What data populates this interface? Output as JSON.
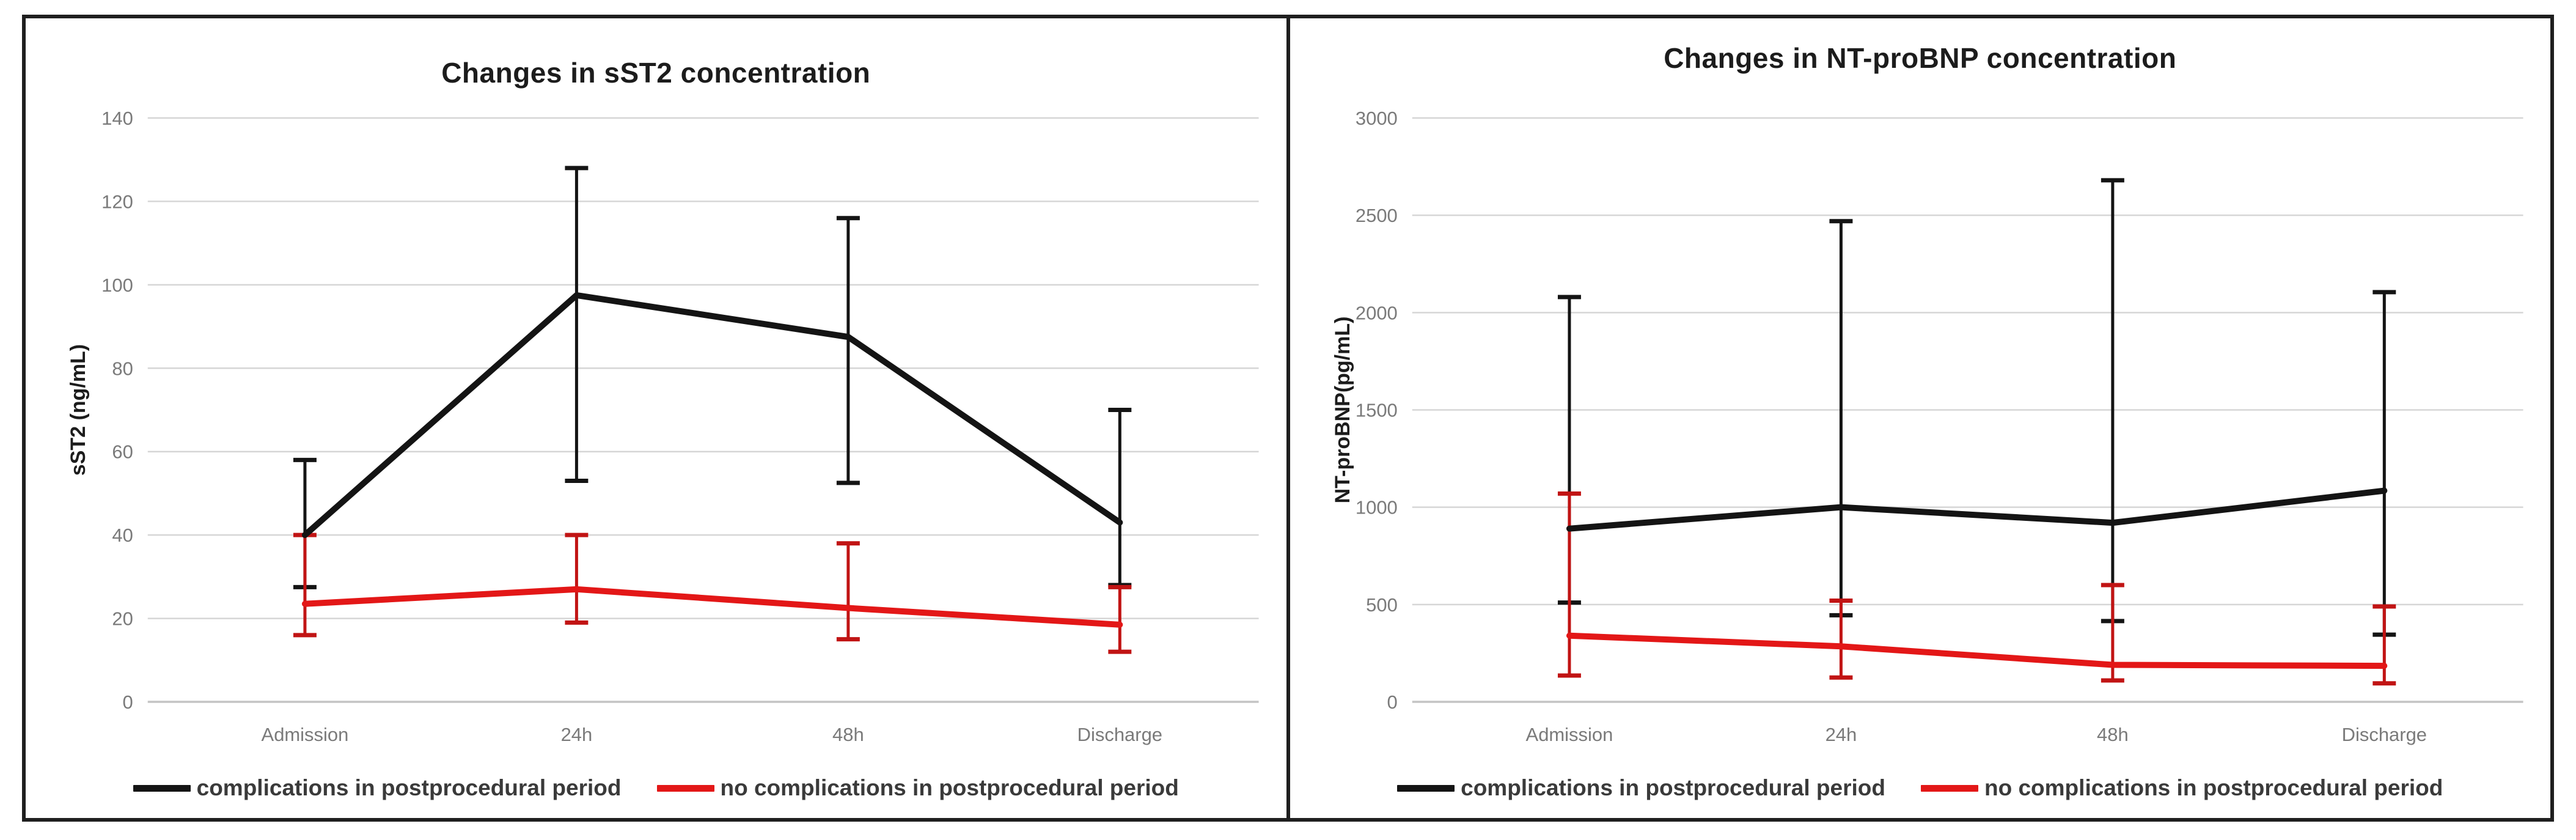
{
  "figure": {
    "background": "#ffffff",
    "frame_color": "#1f1f1f",
    "gridline_color": "#d6d6d6",
    "zero_line_color": "#c4c4c4",
    "tick_label_color": "#7a7a7a",
    "legend_text_color": "#3a3a3a"
  },
  "chart_data": [
    {
      "type": "line",
      "title": "Changes in sST2 concentration",
      "ylabel": "sST2 (ng/mL)",
      "xlabel": "",
      "ylim": [
        0,
        140
      ],
      "ystep": 20,
      "yticks": [
        0,
        20,
        40,
        60,
        80,
        100,
        120,
        140
      ],
      "grid": true,
      "legend_position": "bottom",
      "categories": [
        "Admission",
        "24h",
        "48h",
        "Discharge"
      ],
      "series": [
        {
          "name": "complications in postprocedural period",
          "color": "#141414",
          "error_color": "#141414",
          "values": [
            40,
            97.5,
            87.5,
            43
          ],
          "err_low": [
            27.5,
            53,
            52.5,
            28
          ],
          "err_high": [
            58,
            128,
            116,
            70
          ]
        },
        {
          "name": "no complications in postprocedural period",
          "color": "#e31717",
          "error_color": "#c11414",
          "values": [
            23.5,
            27,
            22.5,
            18.5
          ],
          "err_low": [
            16,
            19,
            15,
            12
          ],
          "err_high": [
            40,
            40,
            38,
            27.5
          ]
        }
      ]
    },
    {
      "type": "line",
      "title": "Changes in NT-proBNP concentration",
      "ylabel": "NT-proBNP(pg/mL)",
      "xlabel": "",
      "ylim": [
        0,
        3000
      ],
      "ystep": 500,
      "yticks": [
        0,
        500,
        1000,
        1500,
        2000,
        2500,
        3000
      ],
      "grid": true,
      "legend_position": "bottom",
      "categories": [
        "Admission",
        "24h",
        "48h",
        "Discharge"
      ],
      "series": [
        {
          "name": "complications in postprocedural period",
          "color": "#141414",
          "error_color": "#141414",
          "values": [
            890,
            1000,
            920,
            1085
          ],
          "err_low": [
            510,
            445,
            415,
            345
          ],
          "err_high": [
            2080,
            2470,
            2680,
            2105
          ]
        },
        {
          "name": "no complications in postprocedural period",
          "color": "#e31717",
          "error_color": "#c11414",
          "values": [
            340,
            285,
            190,
            185
          ],
          "err_low": [
            135,
            125,
            110,
            95
          ],
          "err_high": [
            1070,
            520,
            600,
            490
          ]
        }
      ]
    }
  ]
}
